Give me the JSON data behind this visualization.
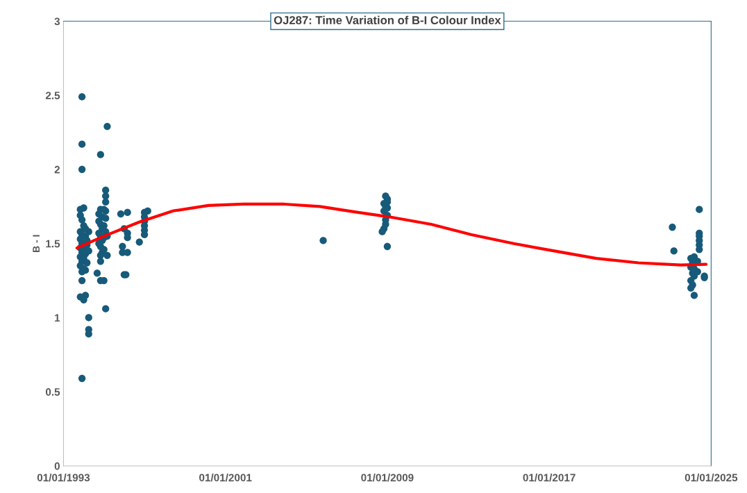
{
  "chart_data": {
    "type": "scatter",
    "title": "OJ287: Time Variation of B-I Colour Index",
    "ylabel": "B - I",
    "series": [
      {
        "color": "#175a7a",
        "marker": "circle",
        "x": [
          "1993-12",
          "1993-12",
          "1993-12",
          "1993-11",
          "1994-01",
          "1993-11",
          "1993-12",
          "1994-01",
          "1993-11",
          "1993-12",
          "1994-02",
          "1993-11",
          "1993-12",
          "1994-03",
          "1993-11",
          "1994-01",
          "1993-12",
          "1994-02",
          "1993-11",
          "1994-01",
          "1993-12",
          "1994-03",
          "1993-11",
          "1994-01",
          "1993-12",
          "1994-02",
          "1994-04",
          "1994-04",
          "1993-12",
          "1993-11",
          "1994-02",
          "1994-01",
          "1994-04",
          "1994-04",
          "1994-04",
          "1993-12",
          "1994-02",
          "1994-03",
          "1995-03",
          "1994-11",
          "1995-02",
          "1995-02",
          "1995-02",
          "1994-11",
          "1995-01",
          "1995-02",
          "1994-10",
          "1994-12",
          "1995-02",
          "1994-10",
          "1994-11",
          "1995-01",
          "1994-12",
          "1995-02",
          "1994-10",
          "1994-11",
          "1995-01",
          "1995-03",
          "1994-12",
          "1994-10",
          "1994-11",
          "1995-01",
          "1994-12",
          "1994-11",
          "1995-03",
          "1994-11",
          "1994-09",
          "1994-11",
          "1995-01",
          "1995-02",
          "1995-11",
          "1996-03",
          "1996-01",
          "1996-03",
          "1996-03",
          "1995-12",
          "1995-12",
          "1996-03",
          "1996-01",
          "1996-02",
          "1996-10",
          "1997-01",
          "1997-03",
          "1997-01",
          "1997-01",
          "1997-01",
          "1997-01",
          "1997-01",
          "2005-11",
          "2008-12",
          "2009-01",
          "2009-01",
          "2008-11",
          "2008-12",
          "2009-01",
          "2008-11",
          "2009-01",
          "2008-12",
          "2008-12",
          "2008-11",
          "2008-10",
          "2009-01",
          "2024-06",
          "2023-02",
          "2023-03",
          "2024-06",
          "2024-06",
          "2024-06",
          "2024-06",
          "2024-06",
          "2024-03",
          "2024-09",
          "2024-09",
          "2024-01",
          "2024-02",
          "2024-01",
          "2024-03",
          "2024-05",
          "2024-02",
          "2024-03",
          "2024-01",
          "2024-02",
          "2024-01",
          "2024-03",
          "2024-05"
        ],
        "values": [
          2.49,
          2.17,
          2.0,
          1.73,
          1.74,
          1.69,
          1.66,
          1.62,
          1.58,
          1.56,
          1.55,
          1.53,
          1.5,
          1.49,
          1.47,
          1.46,
          1.44,
          1.43,
          1.41,
          1.4,
          1.38,
          1.37,
          1.35,
          1.33,
          1.31,
          1.32,
          1.45,
          1.58,
          1.25,
          1.14,
          1.15,
          1.12,
          1.0,
          0.92,
          0.89,
          0.59,
          1.6,
          1.52,
          2.29,
          2.1,
          1.86,
          1.82,
          1.78,
          1.73,
          1.73,
          1.72,
          1.7,
          1.68,
          1.67,
          1.65,
          1.63,
          1.62,
          1.6,
          1.58,
          1.57,
          1.55,
          1.54,
          1.55,
          1.52,
          1.5,
          1.48,
          1.46,
          1.44,
          1.42,
          1.42,
          1.38,
          1.3,
          1.25,
          1.25,
          1.06,
          1.7,
          1.71,
          1.6,
          1.57,
          1.54,
          1.48,
          1.44,
          1.44,
          1.29,
          1.29,
          1.51,
          1.71,
          1.72,
          1.68,
          1.65,
          1.62,
          1.59,
          1.56,
          1.52,
          1.82,
          1.8,
          1.78,
          1.77,
          1.75,
          1.74,
          1.72,
          1.69,
          1.66,
          1.63,
          1.6,
          1.58,
          1.48,
          1.73,
          1.61,
          1.45,
          1.57,
          1.55,
          1.52,
          1.49,
          1.46,
          1.41,
          1.28,
          1.27,
          1.4,
          1.37,
          1.34,
          1.33,
          1.31,
          1.3,
          1.28,
          1.25,
          1.22,
          1.2,
          1.15,
          1.38
        ]
      },
      {
        "type": "line",
        "color": "#ff0000",
        "marker": "none",
        "line_style": "solid",
        "x": [
          "1993-09",
          "1995-01",
          "1996-10",
          "1998-06",
          "2000-03",
          "2001-12",
          "2003-12",
          "2005-09",
          "2007-05",
          "2009-02",
          "2011-03",
          "2013-03",
          "2015-04",
          "2017-04",
          "2019-05",
          "2021-06",
          "2023-07",
          "2024-10"
        ],
        "values": [
          1.47,
          1.55,
          1.645,
          1.72,
          1.757,
          1.766,
          1.766,
          1.75,
          1.715,
          1.68,
          1.63,
          1.56,
          1.5,
          1.45,
          1.4,
          1.37,
          1.355,
          1.36
        ]
      }
    ],
    "xlim": [
      "1993-01-01",
      "2025-01-01"
    ],
    "xticks": [
      {
        "value": "1993-01-01",
        "label": "01/01/1993"
      },
      {
        "value": "2001-01-01",
        "label": "01/01/2001"
      },
      {
        "value": "2009-01-01",
        "label": "01/01/2009"
      },
      {
        "value": "2017-01-01",
        "label": "01/01/2017"
      },
      {
        "value": "2025-01-01",
        "label": "01/01/2025"
      }
    ],
    "ylim": [
      0,
      3
    ],
    "yticks": [
      0,
      0.5,
      1,
      1.5,
      2,
      2.5,
      3
    ],
    "grid": false,
    "legend": false
  }
}
